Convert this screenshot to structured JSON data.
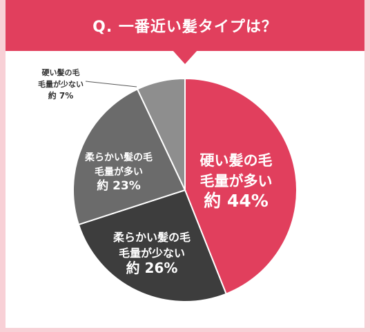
{
  "header": {
    "title": "Q. 一番近い髪タイプは？"
  },
  "colors": {
    "accent": "#e13f5d",
    "background": "#f8d0d6",
    "slices": [
      "#e13f5d",
      "#3d3d3d",
      "#6b6b6b",
      "#8e8e8e"
    ]
  },
  "chart_data": {
    "type": "pie",
    "title": "Q. 一番近い髪タイプは？",
    "slices": [
      {
        "line1": "硬い髪の毛",
        "line2": "毛量が多い",
        "value_label": "約 44%",
        "value": 44
      },
      {
        "line1": "柔らかい髪の毛",
        "line2": "毛量が少ない",
        "value_label": "約 26%",
        "value": 26
      },
      {
        "line1": "柔らかい髪の毛",
        "line2": "毛量が多い",
        "value_label": "約 23%",
        "value": 23
      },
      {
        "line1": "硬い髪の毛",
        "line2": "毛量が少ない",
        "value_label": "約 7%",
        "value": 7
      }
    ]
  }
}
